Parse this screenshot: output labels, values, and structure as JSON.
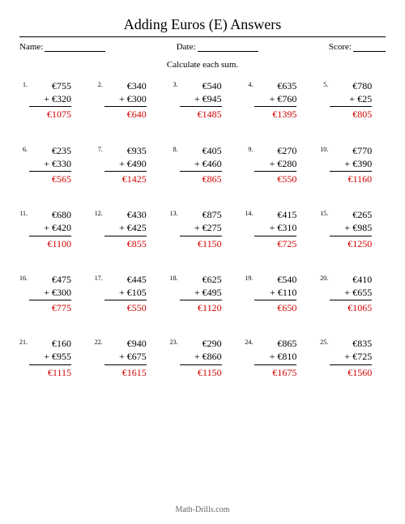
{
  "title": "Adding Euros (E) Answers",
  "labels": {
    "name": "Name:",
    "date": "Date:",
    "score": "Score:"
  },
  "instruction": "Calculate each sum.",
  "currency": "€",
  "footer": "Math-Drills.com",
  "answer_color": "#d00000",
  "problems": [
    {
      "n": 1,
      "a": 755,
      "b": 320,
      "sum": 1075
    },
    {
      "n": 2,
      "a": 340,
      "b": 300,
      "sum": 640
    },
    {
      "n": 3,
      "a": 540,
      "b": 945,
      "sum": 1485
    },
    {
      "n": 4,
      "a": 635,
      "b": 760,
      "sum": 1395
    },
    {
      "n": 5,
      "a": 780,
      "b": 25,
      "sum": 805
    },
    {
      "n": 6,
      "a": 235,
      "b": 330,
      "sum": 565
    },
    {
      "n": 7,
      "a": 935,
      "b": 490,
      "sum": 1425
    },
    {
      "n": 8,
      "a": 405,
      "b": 460,
      "sum": 865
    },
    {
      "n": 9,
      "a": 270,
      "b": 280,
      "sum": 550
    },
    {
      "n": 10,
      "a": 770,
      "b": 390,
      "sum": 1160
    },
    {
      "n": 11,
      "a": 680,
      "b": 420,
      "sum": 1100
    },
    {
      "n": 12,
      "a": 430,
      "b": 425,
      "sum": 855
    },
    {
      "n": 13,
      "a": 875,
      "b": 275,
      "sum": 1150
    },
    {
      "n": 14,
      "a": 415,
      "b": 310,
      "sum": 725
    },
    {
      "n": 15,
      "a": 265,
      "b": 985,
      "sum": 1250
    },
    {
      "n": 16,
      "a": 475,
      "b": 300,
      "sum": 775
    },
    {
      "n": 17,
      "a": 445,
      "b": 105,
      "sum": 550
    },
    {
      "n": 18,
      "a": 625,
      "b": 495,
      "sum": 1120
    },
    {
      "n": 19,
      "a": 540,
      "b": 110,
      "sum": 650
    },
    {
      "n": 20,
      "a": 410,
      "b": 655,
      "sum": 1065
    },
    {
      "n": 21,
      "a": 160,
      "b": 955,
      "sum": 1115
    },
    {
      "n": 22,
      "a": 940,
      "b": 675,
      "sum": 1615
    },
    {
      "n": 23,
      "a": 290,
      "b": 860,
      "sum": 1150
    },
    {
      "n": 24,
      "a": 865,
      "b": 810,
      "sum": 1675
    },
    {
      "n": 25,
      "a": 835,
      "b": 725,
      "sum": 1560
    }
  ]
}
